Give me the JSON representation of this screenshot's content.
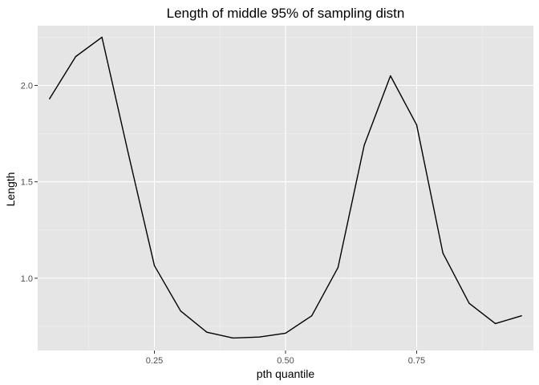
{
  "chart_data": {
    "type": "line",
    "title": "Length of middle 95% of sampling distn",
    "xlabel": "pth quantile",
    "ylabel": "Length",
    "xlim": [
      0.0275,
      0.9725
    ],
    "ylim": [
      0.625,
      2.31
    ],
    "x_ticks": [
      {
        "value": 0.25,
        "label": "0.25"
      },
      {
        "value": 0.5,
        "label": "0.50"
      },
      {
        "value": 0.75,
        "label": "0.75"
      }
    ],
    "x_minor_ticks": [
      0.125,
      0.375,
      0.625,
      0.875
    ],
    "y_ticks": [
      {
        "value": 1.0,
        "label": "1.0"
      },
      {
        "value": 1.5,
        "label": "1.5"
      },
      {
        "value": 2.0,
        "label": "2.0"
      }
    ],
    "y_minor_ticks": [
      0.75,
      1.25,
      1.75,
      2.25
    ],
    "grid": true,
    "colors": {
      "panel_background": "#e5e5e5",
      "grid_major": "#ffffff",
      "grid_minor": "#f2f2f2",
      "line": "#000000",
      "tick_label": "#4d4d4d"
    },
    "series": [
      {
        "x": [
          0.05,
          0.1,
          0.15,
          0.2,
          0.25,
          0.3,
          0.35,
          0.4,
          0.45,
          0.5,
          0.55,
          0.6,
          0.65,
          0.7,
          0.75,
          0.8,
          0.85,
          0.9,
          0.95
        ],
        "y": [
          1.93,
          2.15,
          2.25,
          1.65,
          1.065,
          0.83,
          0.72,
          0.69,
          0.695,
          0.715,
          0.805,
          1.055,
          1.69,
          2.05,
          1.795,
          1.13,
          0.87,
          0.765,
          0.805
        ]
      }
    ]
  }
}
